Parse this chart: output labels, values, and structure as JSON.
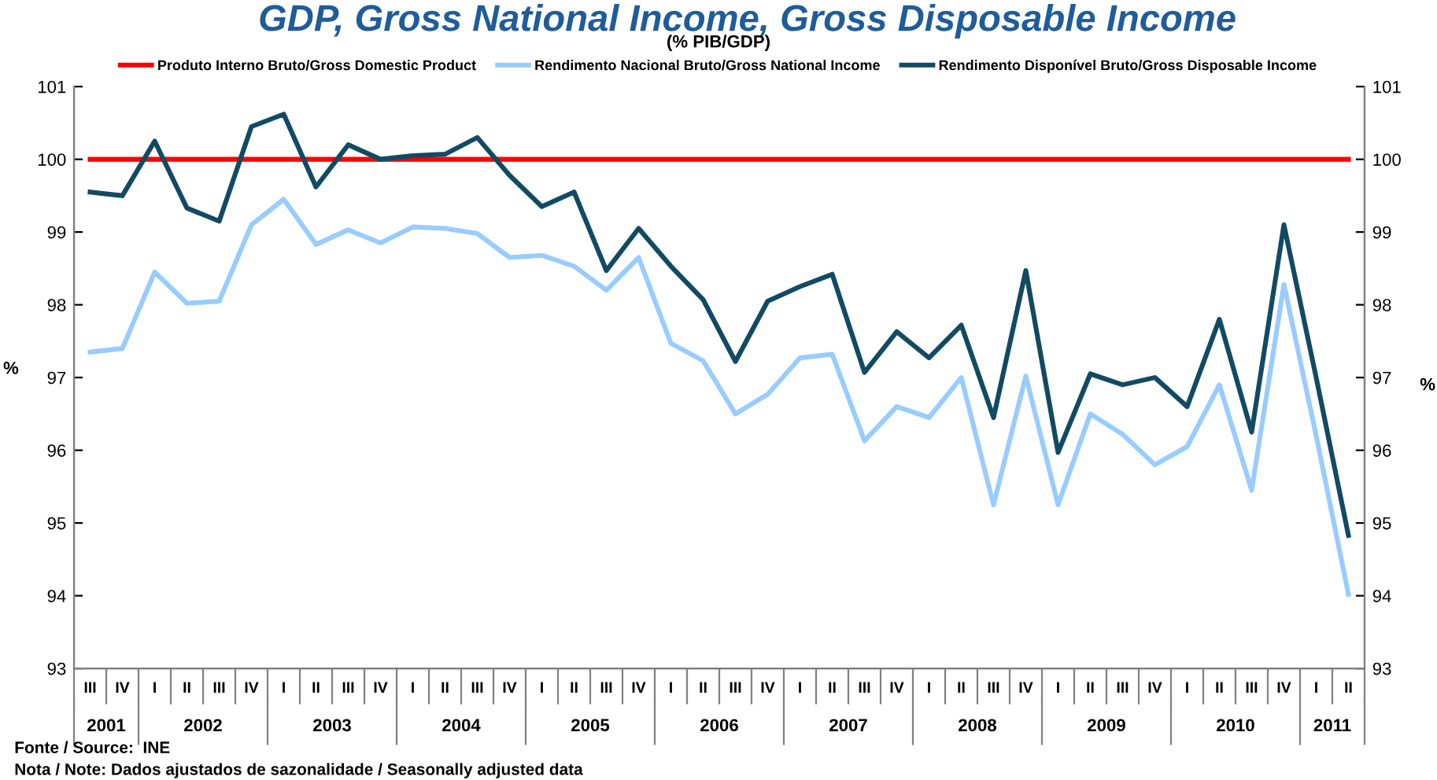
{
  "chart_data": {
    "type": "line",
    "title": "GDP, Gross National Income, Gross Disposable Income",
    "subtitle": "(% PIB/GDP)",
    "ylabel": "%",
    "y2label": "%",
    "categories": [
      "III",
      "IV",
      "I",
      "II",
      "III",
      "IV",
      "I",
      "II",
      "III",
      "IV",
      "I",
      "II",
      "III",
      "IV",
      "I",
      "II",
      "III",
      "IV",
      "I",
      "II",
      "III",
      "IV",
      "I",
      "II",
      "III",
      "IV",
      "I",
      "II",
      "III",
      "IV",
      "I",
      "II",
      "III",
      "IV",
      "I",
      "II",
      "III",
      "IV",
      "I",
      "II"
    ],
    "series": [
      {
        "name": "Produto Interno Bruto/Gross Domestic Product",
        "color": "#ff0000",
        "values": [
          100,
          100,
          100,
          100,
          100,
          100,
          100,
          100,
          100,
          100,
          100,
          100,
          100,
          100,
          100,
          100,
          100,
          100,
          100,
          100,
          100,
          100,
          100,
          100,
          100,
          100,
          100,
          100,
          100,
          100,
          100,
          100,
          100,
          100,
          100,
          100,
          100,
          100,
          100,
          100
        ]
      },
      {
        "name": "Rendimento Nacional Bruto/Gross National Income",
        "color": "#99ccff",
        "values": [
          97.35,
          97.4,
          98.45,
          98.02,
          98.05,
          99.1,
          99.45,
          98.83,
          99.03,
          98.85,
          99.07,
          99.05,
          98.98,
          98.65,
          98.68,
          98.53,
          98.2,
          98.65,
          97.47,
          97.23,
          96.5,
          96.77,
          97.27,
          97.32,
          96.13,
          96.6,
          96.45,
          97.0,
          95.25,
          97.02,
          95.25,
          96.5,
          96.22,
          95.8,
          96.05,
          96.9,
          95.45,
          98.28,
          96.2,
          94.02
        ]
      },
      {
        "name": "Rendimento Disponível Bruto/Gross Disposable Income",
        "color": "#124a63",
        "values": [
          99.55,
          99.5,
          100.25,
          99.33,
          99.15,
          100.45,
          100.62,
          99.62,
          100.2,
          100.0,
          100.05,
          100.07,
          100.3,
          99.78,
          99.35,
          99.55,
          98.47,
          99.05,
          98.53,
          98.07,
          97.22,
          98.05,
          98.25,
          98.42,
          97.07,
          97.63,
          97.27,
          97.72,
          96.45,
          98.47,
          95.97,
          97.05,
          96.9,
          97.0,
          96.6,
          97.8,
          96.25,
          99.1,
          97.0,
          94.83
        ]
      }
    ],
    "ylim": [
      93,
      101
    ],
    "yticks": [
      93,
      94,
      95,
      96,
      97,
      98,
      99,
      100,
      101
    ],
    "y2lim": [
      93,
      101
    ],
    "y2ticks": [
      93,
      94,
      95,
      96,
      97,
      98,
      99,
      100,
      101
    ],
    "grid": false,
    "legend": "top",
    "marker": "none",
    "line_style": "solid",
    "annotations": [
      "2001",
      "2002",
      "2003",
      "2004",
      "2005",
      "2006",
      "2007",
      "2008",
      "2009",
      "2010",
      "2011",
      "Fonte / Source:  INE",
      "Nota / Note: Dados ajustados de sazonalidade / Seasonally adjusted data"
    ]
  }
}
